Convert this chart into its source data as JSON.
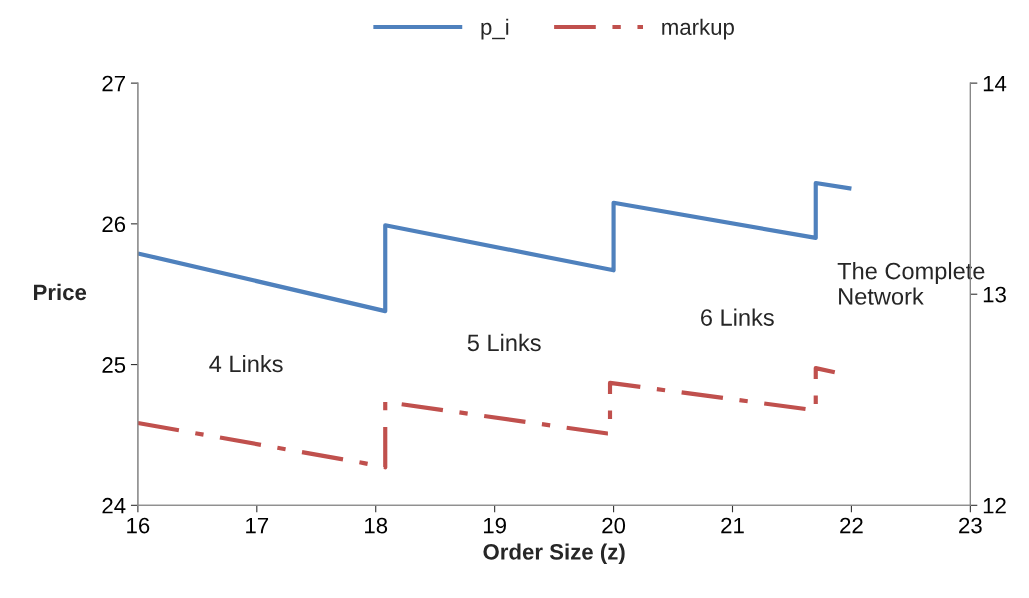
{
  "chart_data": {
    "type": "line",
    "xlabel": "Order Size (z)",
    "ylabel": "Price",
    "xlim": [
      16,
      23
    ],
    "xticks": [
      16,
      17,
      18,
      19,
      20,
      21,
      22,
      23
    ],
    "ylim": [
      24,
      27
    ],
    "yticks": [
      24,
      25,
      26,
      27
    ],
    "y2lim": [
      12,
      14
    ],
    "y2ticks": [
      12,
      13,
      14
    ],
    "legend": "top",
    "grid": false,
    "series": [
      {
        "name": "p_i",
        "color": "#4f81bd",
        "line_style": "solid",
        "x": [
          16,
          18.08,
          18.08,
          20.0,
          20.0,
          21.7,
          21.7,
          22.0
        ],
        "values": [
          25.79,
          25.38,
          25.99,
          25.67,
          26.15,
          25.9,
          26.29,
          26.25
        ]
      },
      {
        "name": "markup",
        "color": "#c0504d",
        "axis": "y2",
        "line_style": "dashed",
        "x": [
          16,
          17.9,
          18.08,
          18.08,
          19.95,
          19.97,
          19.97,
          21.7,
          21.7,
          21.86
        ],
        "values": [
          12.39,
          12.2,
          12.18,
          12.49,
          12.34,
          12.34,
          12.58,
          12.45,
          12.65,
          12.63
        ]
      }
    ],
    "annotations": [
      "4 Links",
      "5 Links",
      "6 Links",
      "The Complete\nNetwork"
    ]
  }
}
